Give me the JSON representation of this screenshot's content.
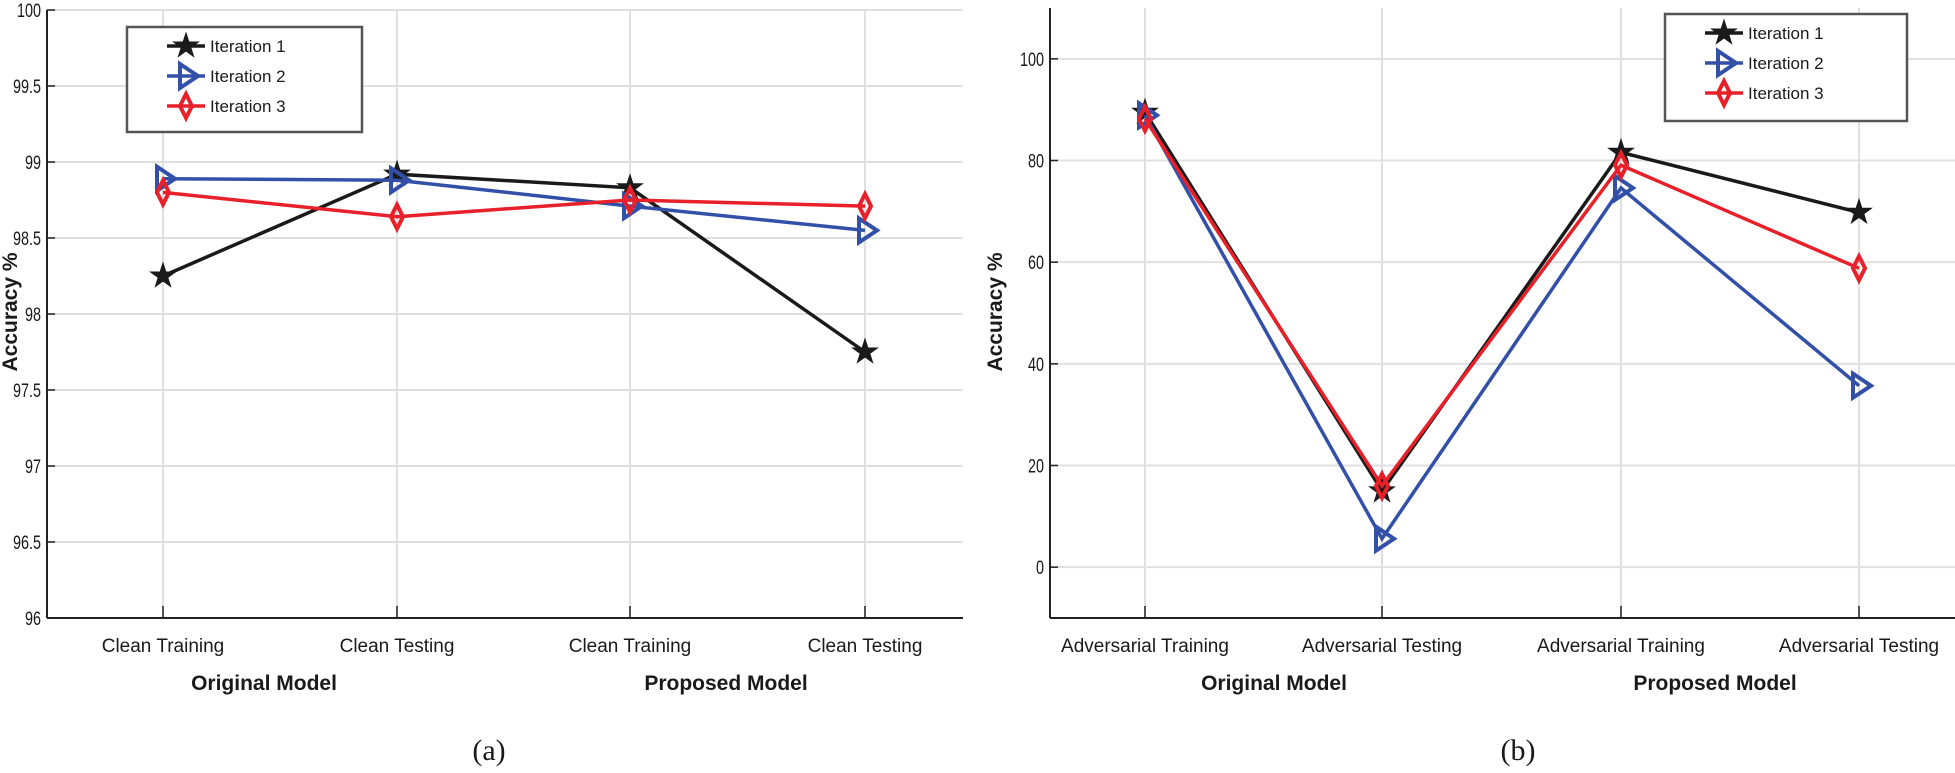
{
  "colors": {
    "Iteration 1": "#1a1a1a",
    "Iteration 2": "#3250a8",
    "Iteration 3": "#e8202a",
    "grid": "#e0e0e0"
  },
  "chart_data": [
    {
      "type": "line",
      "caption": "(a)",
      "ylabel": "Accuracy %",
      "ylim": [
        96,
        100
      ],
      "yticks": [
        96,
        96.5,
        97,
        97.5,
        98,
        98.5,
        99,
        99.5,
        100
      ],
      "ytick_labels": [
        "96",
        "96.5",
        "97",
        "97.5",
        "98",
        "98.5",
        "99",
        "99.5",
        "100"
      ],
      "categories": [
        "Clean Training",
        "Clean Testing",
        "Clean Training",
        "Clean Testing"
      ],
      "groups": [
        "Original Model",
        "Proposed Model"
      ],
      "grid": true,
      "legend": "top-left",
      "series": [
        {
          "name": "Iteration 1",
          "marker": "star",
          "values": [
            98.25,
            98.92,
            98.83,
            97.75
          ]
        },
        {
          "name": "Iteration 2",
          "marker": "triangle-right",
          "values": [
            98.89,
            98.88,
            98.71,
            98.55
          ]
        },
        {
          "name": "Iteration 3",
          "marker": "diamond",
          "values": [
            98.8,
            98.64,
            98.75,
            98.71
          ]
        }
      ]
    },
    {
      "type": "line",
      "caption": "(b)",
      "ylabel": "Accuracy %",
      "ylim": [
        -10,
        110
      ],
      "yticks": [
        0,
        20,
        40,
        60,
        80,
        100
      ],
      "ytick_labels": [
        "0",
        "20",
        "40",
        "60",
        "80",
        "100"
      ],
      "categories": [
        "Adversarial Training",
        "Adversarial Testing",
        "Adversarial Training",
        "Adversarial Testing"
      ],
      "groups": [
        "Original Model",
        "Proposed Model"
      ],
      "grid": true,
      "legend": "top-right",
      "series": [
        {
          "name": "Iteration 1",
          "marker": "star",
          "values": [
            89.5,
            15,
            81.6,
            69.8
          ]
        },
        {
          "name": "Iteration 2",
          "marker": "triangle-right",
          "values": [
            88.9,
            5.6,
            74.6,
            35.7
          ]
        },
        {
          "name": "Iteration 3",
          "marker": "diamond",
          "values": [
            88.2,
            16,
            79.1,
            58.8
          ]
        }
      ]
    }
  ]
}
